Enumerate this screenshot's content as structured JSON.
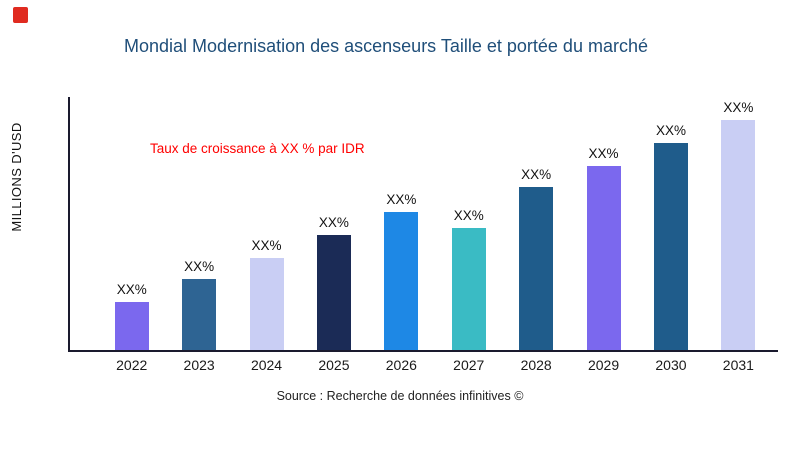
{
  "brand": {
    "logo_color": "#e02b20"
  },
  "footer": {
    "source": "Source : Recherche de données infinitives ©"
  },
  "chart_data": {
    "type": "bar",
    "title": "Mondial Modernisation des ascenseurs Taille et portée du marché",
    "title_color": "#1f4e79",
    "xlabel": "",
    "ylabel": "MILLIONS D'USD",
    "categories": [
      "2022",
      "2023",
      "2024",
      "2025",
      "2026",
      "2027",
      "2028",
      "2029",
      "2030",
      "2031"
    ],
    "values": [
      21,
      31,
      40,
      50,
      60,
      53,
      71,
      80,
      90,
      100
    ],
    "ylim": [
      0,
      110
    ],
    "bar_labels": [
      "XX%",
      "XX%",
      "XX%",
      "XX%",
      "XX%",
      "XX%",
      "XX%",
      "XX%",
      "XX%",
      "XX%"
    ],
    "bar_colors": [
      "#7b68ee",
      "#2e6493",
      "#c9cef4",
      "#1b2b56",
      "#1e88e5",
      "#3abbc4",
      "#1f5c8b",
      "#7b68ee",
      "#1f5c8b",
      "#c9cef4"
    ],
    "annotation": "Taux de croissance à XX % par IDR",
    "annotation_color": "#ff0000",
    "axis_color": "#1a1a2e",
    "grid": false,
    "legend": false
  }
}
